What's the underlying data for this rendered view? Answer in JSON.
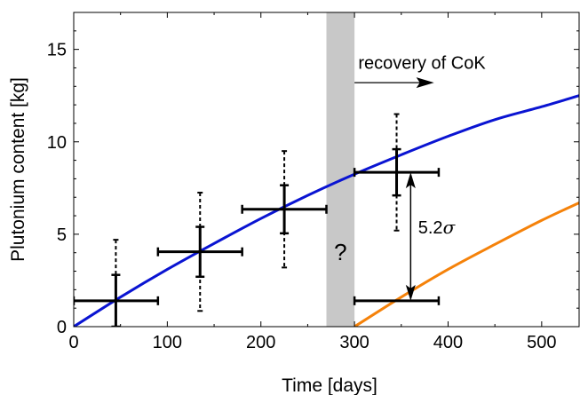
{
  "chart_data": {
    "type": "scatter",
    "title": "",
    "xlabel": "Time [days]",
    "ylabel": "Plutonium content [kg]",
    "xlim": [
      0,
      540
    ],
    "ylim": [
      0,
      17
    ],
    "x_ticks": [
      0,
      100,
      200,
      300,
      400,
      500
    ],
    "x_tick_labels": [
      "0",
      "100",
      "200",
      "300",
      "400",
      "500"
    ],
    "y_ticks": [
      0,
      5,
      10,
      15
    ],
    "y_tick_labels": [
      "0",
      "5",
      "10",
      "15"
    ],
    "grid": false,
    "colors": {
      "blue_curve": "#0a14d2",
      "orange_curve": "#f5820a",
      "gap_band": "#c8c8c8",
      "points": "#000000"
    },
    "curves": [
      {
        "color": "blue",
        "x": [
          0,
          50,
          100,
          150,
          200,
          250,
          300,
          350,
          400,
          450,
          500,
          540
        ],
        "y": [
          0,
          1.6,
          3.1,
          4.5,
          5.85,
          7.1,
          8.25,
          9.3,
          10.3,
          11.2,
          11.9,
          12.5
        ]
      },
      {
        "color": "orange",
        "x": [
          300,
          350,
          400,
          450,
          500,
          540
        ],
        "y": [
          0,
          1.6,
          3.1,
          4.45,
          5.75,
          6.7
        ]
      }
    ],
    "points": [
      {
        "x": 45,
        "y": 1.4,
        "xerr": 45,
        "yerr_inner": 1.4,
        "yerr_outer": 3.3
      },
      {
        "x": 135,
        "y": 4.05,
        "xerr": 45,
        "yerr_inner": 1.35,
        "yerr_outer": 3.2
      },
      {
        "x": 225,
        "y": 6.35,
        "xerr": 45,
        "yerr_inner": 1.3,
        "yerr_outer": 3.15
      },
      {
        "x": 345,
        "y": 8.35,
        "xerr": 45,
        "yerr_inner": 1.25,
        "yerr_outer": 3.15
      }
    ],
    "reference_bar": {
      "x": 345,
      "y": 1.4,
      "xerr": 45
    },
    "gap_band": {
      "x_start": 270,
      "x_end": 300,
      "label": "?"
    },
    "recovery_annotation": {
      "label": "recovery of CoK",
      "arrow_from_x": 300,
      "arrow_to_x": 385,
      "y": 13.2,
      "label_x": 304,
      "label_y": 13.95
    },
    "sigma_annotation": {
      "label": "5.2",
      "symbol": "σ",
      "x": 360,
      "y_top": 8.35,
      "y_bottom": 1.4,
      "label_x": 368,
      "label_y": 5.05
    }
  }
}
